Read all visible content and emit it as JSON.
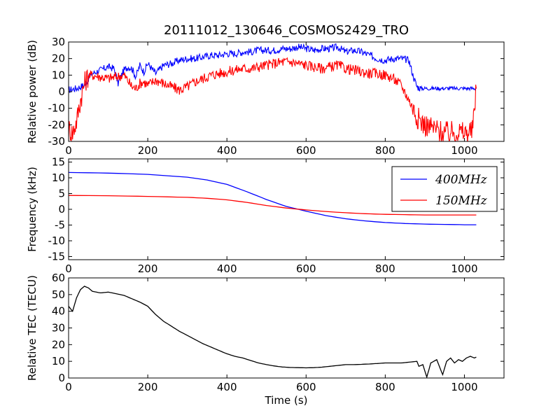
{
  "figure": {
    "title": "20111012_130646_COSMOS2429_TRO",
    "xlabel": "Time (s)"
  },
  "chart_data": [
    {
      "type": "line",
      "id": "power",
      "title": "20111012_130646_COSMOS2429_TRO",
      "xlabel": "",
      "ylabel": "Relative power (dB)",
      "xlim": [
        0,
        1100
      ],
      "ylim": [
        -30,
        30
      ],
      "xticks": [
        0,
        200,
        400,
        600,
        800,
        1000
      ],
      "yticks": [
        -30,
        -20,
        -10,
        0,
        10,
        20,
        30
      ],
      "grid": false,
      "legend": null,
      "series": [
        {
          "color": "#0000ff",
          "x": [
            0,
            20,
            40,
            50,
            60,
            80,
            100,
            115,
            125,
            130,
            140,
            150,
            160,
            170,
            180,
            190,
            200,
            210,
            220,
            240,
            260,
            280,
            300,
            320,
            340,
            360,
            380,
            400,
            420,
            440,
            460,
            480,
            500,
            520,
            540,
            560,
            580,
            600,
            620,
            640,
            660,
            680,
            700,
            720,
            740,
            760,
            780,
            800,
            820,
            840,
            860,
            870,
            880,
            890,
            900,
            950,
            1000,
            1030
          ],
          "y": [
            1,
            2,
            4,
            8,
            11,
            13,
            15,
            14,
            5,
            8,
            13,
            15,
            14,
            9,
            16,
            12,
            17,
            14,
            11,
            16,
            17,
            19,
            20,
            20,
            21,
            22,
            22,
            23,
            23,
            24,
            24,
            25,
            25,
            25,
            26,
            26,
            27,
            26,
            25,
            26,
            26,
            27,
            24,
            25,
            24,
            22,
            20,
            19,
            20,
            20,
            19,
            10,
            3,
            2,
            2,
            2,
            2,
            2
          ]
        },
        {
          "color": "#ff0000",
          "x": [
            0,
            10,
            20,
            30,
            40,
            50,
            60,
            80,
            100,
            120,
            140,
            160,
            170,
            180,
            190,
            200,
            220,
            240,
            260,
            280,
            300,
            320,
            340,
            360,
            380,
            400,
            420,
            440,
            460,
            480,
            500,
            520,
            540,
            560,
            580,
            600,
            620,
            640,
            660,
            680,
            700,
            720,
            740,
            760,
            780,
            800,
            820,
            840,
            860,
            870,
            880,
            890,
            900,
            920,
            940,
            960,
            980,
            1000,
            1020,
            1030
          ],
          "y": [
            -22,
            -25,
            -18,
            -5,
            5,
            10,
            10,
            9,
            8,
            9,
            10,
            3,
            2,
            5,
            6,
            4,
            7,
            5,
            3,
            1,
            3,
            6,
            8,
            10,
            11,
            12,
            13,
            14,
            14,
            15,
            16,
            17,
            18,
            18,
            17,
            16,
            15,
            14,
            15,
            16,
            14,
            13,
            12,
            11,
            11,
            10,
            8,
            4,
            -5,
            -10,
            -15,
            -18,
            -20,
            -22,
            -24,
            -25,
            -24,
            -25,
            -24,
            2
          ]
        }
      ]
    },
    {
      "type": "line",
      "id": "frequency",
      "title": "",
      "xlabel": "",
      "ylabel": "Frequency (kHz)",
      "xlim": [
        0,
        1100
      ],
      "ylim": [
        -16,
        16
      ],
      "xticks": [
        0,
        200,
        400,
        600,
        800,
        1000
      ],
      "yticks": [
        -15,
        -10,
        -5,
        0,
        5,
        10,
        15
      ],
      "grid": false,
      "legend": "top-right",
      "series": [
        {
          "name": "400MHz",
          "color": "#0000ff",
          "x": [
            0,
            100,
            200,
            300,
            350,
            400,
            450,
            500,
            550,
            600,
            650,
            700,
            750,
            800,
            850,
            900,
            950,
            1000,
            1030
          ],
          "y": [
            11.7,
            11.5,
            11.1,
            10.2,
            9.3,
            7.9,
            5.6,
            3.1,
            0.9,
            -0.6,
            -2.0,
            -3.0,
            -3.7,
            -4.2,
            -4.5,
            -4.7,
            -4.8,
            -4.9,
            -4.9
          ]
        },
        {
          "name": "150MHz",
          "color": "#ff0000",
          "x": [
            0,
            100,
            200,
            300,
            350,
            400,
            450,
            500,
            550,
            600,
            650,
            700,
            750,
            800,
            850,
            900,
            950,
            1000,
            1030
          ],
          "y": [
            4.4,
            4.3,
            4.1,
            3.8,
            3.5,
            3.0,
            2.2,
            1.2,
            0.4,
            -0.2,
            -0.7,
            -1.1,
            -1.4,
            -1.6,
            -1.7,
            -1.8,
            -1.8,
            -1.8,
            -1.8
          ]
        }
      ]
    },
    {
      "type": "line",
      "id": "tec",
      "title": "",
      "xlabel": "Time (s)",
      "ylabel": "Relative TEC (TECU)",
      "xlim": [
        0,
        1100
      ],
      "ylim": [
        0,
        60
      ],
      "xticks": [
        0,
        200,
        400,
        600,
        800,
        1000
      ],
      "yticks": [
        0,
        10,
        20,
        30,
        40,
        50,
        60
      ],
      "grid": false,
      "legend": null,
      "series": [
        {
          "color": "#000000",
          "x": [
            0,
            10,
            20,
            30,
            40,
            50,
            60,
            80,
            100,
            120,
            130,
            140,
            160,
            180,
            200,
            220,
            240,
            260,
            280,
            300,
            320,
            340,
            360,
            380,
            400,
            420,
            440,
            460,
            480,
            500,
            520,
            540,
            560,
            580,
            600,
            620,
            640,
            660,
            680,
            700,
            720,
            740,
            760,
            780,
            800,
            820,
            840,
            860,
            880,
            885,
            895,
            905,
            915,
            930,
            940,
            945,
            955,
            965,
            975,
            985,
            995,
            1005,
            1015,
            1025,
            1030
          ],
          "y": [
            43,
            40,
            48,
            53,
            55,
            54,
            52,
            51,
            51.5,
            50.5,
            50,
            49.5,
            47.5,
            45.5,
            43,
            38,
            34,
            31,
            28,
            25.5,
            23,
            20.5,
            18.5,
            16.5,
            14.5,
            13,
            12,
            10.5,
            9,
            8,
            7.2,
            6.6,
            6.3,
            6.2,
            6.1,
            6.2,
            6.5,
            7,
            7.5,
            8,
            8,
            8.2,
            8.4,
            8.7,
            9,
            9,
            9,
            9.5,
            10,
            7,
            8,
            0.5,
            9,
            11,
            5,
            2,
            10,
            12,
            9,
            11,
            10,
            12,
            13,
            12,
            12.5
          ]
        }
      ]
    }
  ]
}
